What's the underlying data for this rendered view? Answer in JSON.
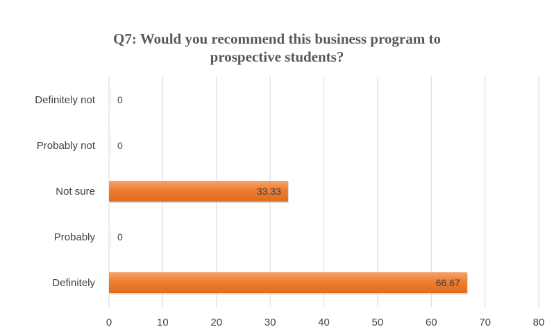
{
  "chart_data": {
    "type": "bar",
    "orientation": "horizontal",
    "title": "Q7: Would you recommend this business program to prospective students?",
    "title_lines": [
      "Q7: Would you recommend this business program to",
      "prospective students?"
    ],
    "categories": [
      "Definitely not",
      "Probably not",
      "Not sure",
      "Probably",
      "Definitely"
    ],
    "values": [
      0,
      0,
      33.33,
      0,
      66.67
    ],
    "data_labels": [
      "0",
      "0",
      "33.33",
      "0",
      "66.67"
    ],
    "xlim": [
      0,
      80
    ],
    "xticks": [
      0,
      10,
      20,
      30,
      40,
      50,
      60,
      70,
      80
    ],
    "xlabel": "",
    "ylabel": "",
    "grid": "vertical",
    "legend": "none",
    "colors": {
      "bar": "#ed7d31",
      "bar_light": "#f4a36b",
      "grid": "#d9d9d9",
      "text": "#404040",
      "title": "#595959"
    }
  }
}
